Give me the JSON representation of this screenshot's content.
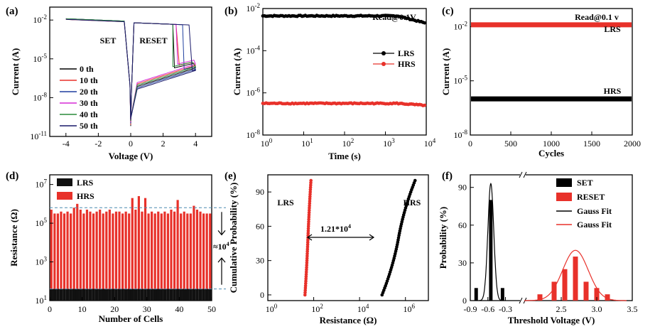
{
  "chart_data": [
    {
      "panel": "(a)",
      "type": "line",
      "xlabel": "Voltage (V)",
      "ylabel": "Current (A)",
      "xlim": [
        -5,
        5
      ],
      "ylim_log10": [
        -11,
        -1
      ],
      "xticks": [
        "-4",
        "-2",
        "0",
        "2",
        "4"
      ],
      "yticks": [
        {
          "exp": "-2",
          "val": -2
        },
        {
          "exp": "-5",
          "val": -5
        },
        {
          "exp": "-8",
          "val": -8
        },
        {
          "exp": "-11",
          "val": -11
        }
      ],
      "annotations": [
        "SET",
        "RESET"
      ],
      "series": [
        {
          "name": "0 th",
          "color": "#000000",
          "reset_v": 2.7,
          "cc_log": -1.9,
          "off_log": -5.7
        },
        {
          "name": "10 th",
          "color": "#e8312a",
          "reset_v": 3.0,
          "cc_log": -1.95,
          "off_log": -5.5
        },
        {
          "name": "20 th",
          "color": "#1f3f9f",
          "reset_v": 3.3,
          "cc_log": -1.9,
          "off_log": -5.8
        },
        {
          "name": "30 th",
          "color": "#d62ad6",
          "reset_v": 2.9,
          "cc_log": -1.92,
          "off_log": -5.4
        },
        {
          "name": "40 th",
          "color": "#2a8a3a",
          "reset_v": 2.6,
          "cc_log": -1.9,
          "off_log": -5.6
        },
        {
          "name": "50 th",
          "color": "#1a1a6a",
          "reset_v": 3.8,
          "cc_log": -1.95,
          "off_log": -5.9
        }
      ]
    },
    {
      "panel": "(b)",
      "type": "scatter",
      "title": "Read@0.1V",
      "xlabel": "Time (s)",
      "ylabel": "Current (A)",
      "xlim_log10": [
        0,
        4
      ],
      "ylim_log10": [
        -8,
        -2
      ],
      "xticks": [
        {
          "exp": "0",
          "val": 0
        },
        {
          "exp": "1",
          "val": 1
        },
        {
          "exp": "2",
          "val": 2
        },
        {
          "exp": "3",
          "val": 3
        },
        {
          "exp": "4",
          "val": 4
        }
      ],
      "yticks": [
        {
          "exp": "-2",
          "val": -2
        },
        {
          "exp": "-4",
          "val": -4
        },
        {
          "exp": "-6",
          "val": -6
        },
        {
          "exp": "-8",
          "val": -8
        }
      ],
      "series": [
        {
          "name": "LRS",
          "color": "#000000",
          "current_log10": -2.35,
          "end_current_log10": -2.7
        },
        {
          "name": "HRS",
          "color": "#e8312a",
          "current_log10": -6.5,
          "end_current_log10": -6.6
        }
      ]
    },
    {
      "panel": "(c)",
      "type": "line",
      "title": "Read@0.1 v",
      "xlabel": "Cycles",
      "ylabel": "Current (A)",
      "xlim": [
        0,
        2000
      ],
      "ylim_log10": [
        -8,
        -1
      ],
      "xticks": [
        "0",
        "500",
        "1000",
        "1500",
        "2000"
      ],
      "yticks": [
        {
          "exp": "-2",
          "val": -2
        },
        {
          "exp": "-5",
          "val": -5
        },
        {
          "exp": "-8",
          "val": -8
        }
      ],
      "series": [
        {
          "name": "LRS",
          "color": "#e8312a",
          "current_log10": -1.9
        },
        {
          "name": "HRS",
          "color": "#000000",
          "current_log10": -6.0
        }
      ]
    },
    {
      "panel": "(d)",
      "type": "bar",
      "xlabel": "Number of Cells",
      "ylabel": "Resistance (Ω)",
      "xlim": [
        0,
        50
      ],
      "ylim_log10": [
        1,
        7.5
      ],
      "xticks": [
        "0",
        "10",
        "20",
        "30",
        "40",
        "50"
      ],
      "yticks": [
        {
          "exp": "1",
          "val": 1
        },
        {
          "exp": "3",
          "val": 3
        },
        {
          "exp": "5",
          "val": 5
        },
        {
          "exp": "7",
          "val": 7
        }
      ],
      "ratio_label": "≈10",
      "ratio_exp": "4",
      "series": [
        {
          "name": "LRS",
          "color": "#111111",
          "values_log10": [
            1.6,
            1.6,
            1.6,
            1.6,
            1.6,
            1.6,
            1.6,
            1.6,
            1.6,
            1.6,
            1.6,
            1.6,
            1.6,
            1.6,
            1.6,
            1.6,
            1.6,
            1.6,
            1.6,
            1.6,
            1.6,
            1.6,
            1.6,
            1.6,
            1.6,
            1.6,
            1.6,
            1.6,
            1.6,
            1.6,
            1.6,
            1.6,
            1.6,
            1.6,
            1.6,
            1.6,
            1.6,
            1.6,
            1.6,
            1.6,
            1.6,
            1.6,
            1.6,
            1.6,
            1.6,
            1.6,
            1.6,
            1.6,
            1.6,
            1.6
          ]
        },
        {
          "name": "HRS",
          "color": "#e8312a",
          "values_log10": [
            5.7,
            5.5,
            5.5,
            5.6,
            5.5,
            5.6,
            5.5,
            5.8,
            6.0,
            5.7,
            5.5,
            5.7,
            5.6,
            5.5,
            5.6,
            5.7,
            5.5,
            5.6,
            5.7,
            5.5,
            5.6,
            5.6,
            5.5,
            5.6,
            5.5,
            6.3,
            5.7,
            6.4,
            5.6,
            6.3,
            5.5,
            5.6,
            5.5,
            5.6,
            5.5,
            5.6,
            5.5,
            5.7,
            5.6,
            6.2,
            5.5,
            5.6,
            5.5,
            5.5,
            5.9,
            5.7,
            5.6,
            5.5,
            5.5,
            5.5
          ]
        }
      ]
    },
    {
      "panel": "(e)",
      "type": "scatter",
      "xlabel": "Resistance (Ω)",
      "ylabel": "Cumulative Probability (%)",
      "xlim_log10": [
        0,
        7
      ],
      "ylim": [
        -5,
        105
      ],
      "xticks": [
        {
          "exp": "0",
          "val": 0
        },
        {
          "exp": "2",
          "val": 2
        },
        {
          "exp": "4",
          "val": 4
        },
        {
          "exp": "6",
          "val": 6
        }
      ],
      "yticks": [
        "0",
        "30",
        "60",
        "90"
      ],
      "gap_label": "1.21*10",
      "gap_exp": "4",
      "series": [
        {
          "name": "LRS",
          "color": "#e8312a",
          "median_log10": 1.75,
          "spread": 0.1
        },
        {
          "name": "HRS",
          "color": "#000000",
          "median_log10": 5.7,
          "spread": 0.45
        }
      ]
    },
    {
      "panel": "(f)",
      "type": "bar",
      "xlabel": "Threshold Voltage (V)",
      "ylabel": "Probability (%)",
      "ylim": [
        0,
        100
      ],
      "xticks": [
        "-0.9",
        "-0.6",
        "-0.3",
        "2.5",
        "3.0",
        "3.5"
      ],
      "yticks": [
        "0",
        "30",
        "60",
        "90"
      ],
      "series": [
        {
          "name": "SET",
          "color": "#000000",
          "x": [
            -0.8,
            -0.55,
            -0.35
          ],
          "values": [
            10,
            80,
            10
          ],
          "bar_width": 0.06
        },
        {
          "name": "RESET",
          "color": "#e8312a",
          "x": [
            2.2,
            2.4,
            2.55,
            2.7,
            2.85,
            3.0,
            3.15
          ],
          "values": [
            5,
            15,
            25,
            35,
            15,
            10,
            5
          ],
          "bar_width": 0.07
        },
        {
          "name": "Gauss Fit",
          "color": "#000000",
          "mu": -0.55,
          "sigma": 0.05,
          "amp": 93
        },
        {
          "name": "Gauss Fit",
          "color": "#e8312a",
          "mu": 2.7,
          "sigma": 0.18,
          "amp": 40
        }
      ]
    }
  ]
}
